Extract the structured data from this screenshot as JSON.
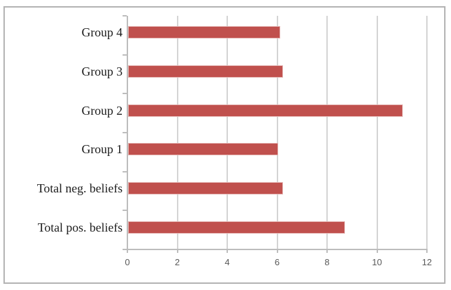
{
  "chart_data": {
    "type": "bar",
    "orientation": "horizontal",
    "title": "",
    "xlabel": "",
    "ylabel": "",
    "categories": [
      "Group 4",
      "Group 3",
      "Group 2",
      "Group 1",
      "Total neg. beliefs",
      "Total pos. beliefs"
    ],
    "values": [
      6.1,
      6.2,
      11.0,
      6.0,
      6.2,
      8.7
    ],
    "xlim": [
      0,
      12
    ],
    "xticks": [
      0,
      2,
      4,
      6,
      8,
      10,
      12
    ],
    "grid": true,
    "legend": false,
    "colors": {
      "bar": "#c0504d",
      "bar_edge": "#e4b3b1",
      "gridline": "#d4d4d4",
      "axis": "#bdbdbd",
      "tick_label": "#595959",
      "category_label": "#1b1b1b",
      "frame_border": "#b3b3b3",
      "background": "#ffffff"
    }
  }
}
